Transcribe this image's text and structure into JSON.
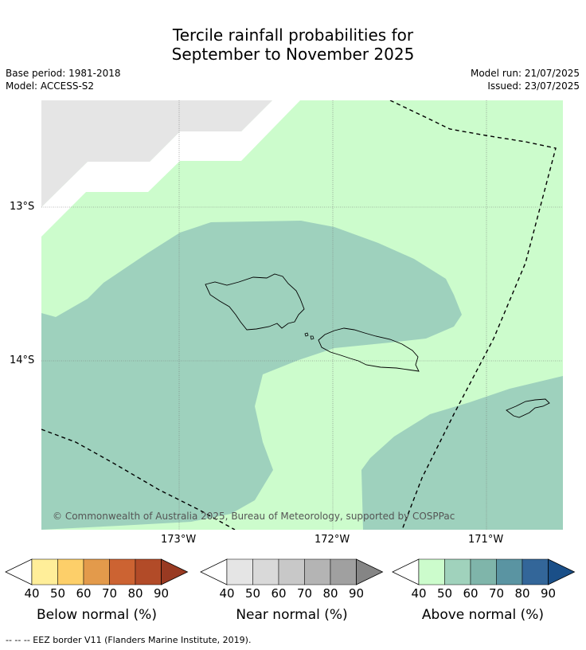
{
  "title_line1": "Tercile rainfall probabilities for",
  "title_line2": "September to November 2025",
  "meta_left": {
    "base_period": "Base period: 1981-2018",
    "model": "Model: ACCESS-S2"
  },
  "meta_right": {
    "model_run": "Model run: 21/07/2025",
    "issued": "Issued: 23/07/2025"
  },
  "axes": {
    "lat_ticks": [
      "13°S",
      "14°S"
    ],
    "lon_ticks": [
      "173°W",
      "172°W",
      "171°W"
    ]
  },
  "copyright": "© Commonwealth of Australia 2025, Bureau of Meteorology, supported by COSPPac",
  "colorbars": [
    {
      "label": "Below normal (%)",
      "ticks": [
        "40",
        "50",
        "60",
        "70",
        "80",
        "90"
      ],
      "colors": [
        "#ffffff",
        "#ffee99",
        "#fdcf69",
        "#e39a4b",
        "#cc6332",
        "#b24b28",
        "#993a22"
      ]
    },
    {
      "label": "Near normal (%)",
      "ticks": [
        "40",
        "50",
        "60",
        "70",
        "80",
        "90"
      ],
      "colors": [
        "#ffffff",
        "#e5e5e5",
        "#d9d9d9",
        "#c8c8c8",
        "#b4b4b4",
        "#a0a0a0",
        "#858585"
      ]
    },
    {
      "label": "Above normal (%)",
      "ticks": [
        "40",
        "50",
        "60",
        "70",
        "80",
        "90"
      ],
      "colors": [
        "#ffffff",
        "#ccfccc",
        "#a0d2bc",
        "#7fb5aa",
        "#5a94a2",
        "#336699",
        "#1a4f88"
      ]
    }
  ],
  "footer": "--  --  -- EEZ border V11 (Flanders Marine Institute, 2019).",
  "colors": {
    "above_40_50": "#ccfccc",
    "above_50_60": "#9ed1bd",
    "near_40_50": "#e5e5e5"
  }
}
